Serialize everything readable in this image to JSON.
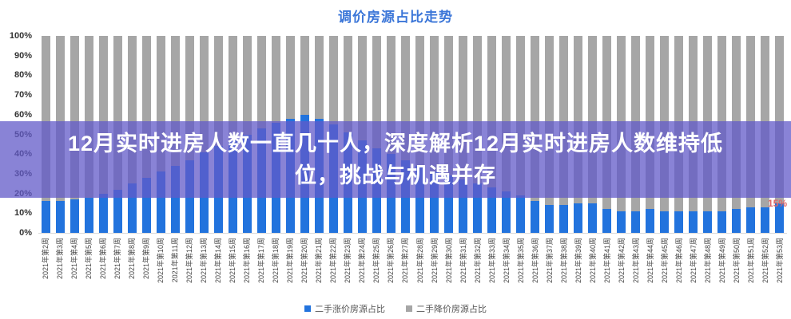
{
  "title": "调价房源占比走势",
  "title_color": "#3b76d8",
  "overlay": {
    "background": "rgba(98,89,200,0.75)",
    "lines": [
      "12月实时进房人数一直几十人，深度解析12月实时进房人数维持低",
      "位，挑战与机遇并存"
    ]
  },
  "chart_data": {
    "type": "bar",
    "stacked": true,
    "title": "调价房源占比走势",
    "xlabel": "",
    "ylabel": "",
    "ylim": [
      0,
      100
    ],
    "grid": false,
    "legend_position": "bottom",
    "yticks": [
      "0%",
      "10%",
      "20%",
      "30%",
      "40%",
      "50%",
      "60%",
      "70%",
      "80%",
      "90%",
      "100%"
    ],
    "categories": [
      "2021年第2周",
      "2021年第3周",
      "2021年第4周",
      "2021年第5周",
      "2021年第6周",
      "2021年第7周",
      "2021年第8周",
      "2021年第9周",
      "2021年第10周",
      "2021年第11周",
      "2021年第12周",
      "2021年第13周",
      "2021年第14周",
      "2021年第15周",
      "2021年第16周",
      "2021年第17周",
      "2021年第18周",
      "2021年第19周",
      "2021年第20周",
      "2021年第21周",
      "2021年第22周",
      "2021年第23周",
      "2021年第24周",
      "2021年第25周",
      "2021年第26周",
      "2021年第27周",
      "2021年第28周",
      "2021年第29周",
      "2021年第30周",
      "2021年第31周",
      "2021年第32周",
      "2021年第33周",
      "2021年第34周",
      "2021年第35周",
      "2021年第36周",
      "2021年第37周",
      "2021年第38周",
      "2021年第39周",
      "2021年第40周",
      "2021年第41周",
      "2021年第42周",
      "2021年第43周",
      "2021年第44周",
      "2021年第45周",
      "2021年第46周",
      "2021年第47周",
      "2021年第48周",
      "2021年第49周",
      "2021年第50周",
      "2021年第51周",
      "2021年第52周",
      "2021年第53周"
    ],
    "series": [
      {
        "name": "二手涨价房源占比",
        "color": "#2273dd",
        "values": [
          16,
          16,
          17,
          18,
          20,
          22,
          25,
          28,
          31,
          34,
          37,
          41,
          44,
          47,
          50,
          53,
          56,
          58,
          60,
          58,
          55,
          51,
          47,
          43,
          40,
          37,
          34,
          31,
          29,
          27,
          25,
          23,
          21,
          19,
          16,
          14,
          14,
          15,
          15,
          12,
          11,
          11,
          12,
          11,
          11,
          11,
          11,
          11,
          12,
          13,
          13,
          15
        ]
      },
      {
        "name": "二手降价房源占比",
        "color": "#a6a6a6",
        "values": [
          84,
          84,
          83,
          82,
          80,
          78,
          75,
          72,
          69,
          66,
          63,
          59,
          56,
          53,
          50,
          47,
          44,
          42,
          40,
          42,
          45,
          49,
          53,
          57,
          60,
          63,
          66,
          69,
          71,
          73,
          75,
          77,
          79,
          81,
          84,
          86,
          86,
          85,
          85,
          88,
          89,
          89,
          88,
          89,
          89,
          89,
          89,
          89,
          88,
          87,
          87,
          85
        ]
      }
    ],
    "annotation": {
      "text": "15%",
      "color": "#e06666"
    }
  }
}
